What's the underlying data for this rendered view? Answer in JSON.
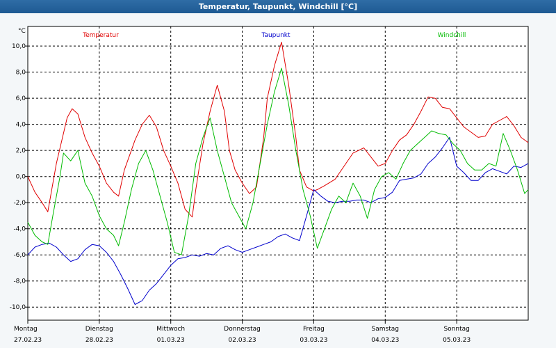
{
  "chart_data": {
    "type": "line",
    "title": "Temperatur, Taupunkt, Windchill [°C]",
    "ylabel": "°C",
    "ylim": [
      -11,
      11.5
    ],
    "yticks": [
      10,
      8,
      6,
      4,
      2,
      0,
      -2,
      -4,
      -6,
      -8,
      -10
    ],
    "ytick_labels": [
      "10,0",
      "8,0",
      "6,0",
      "4,0",
      "2,0",
      "0,0",
      "-2,0",
      "-4,0",
      "-6,0",
      "-8,0",
      "-10,0"
    ],
    "xlim": [
      0,
      7
    ],
    "x_days": [
      {
        "day": "Montag",
        "date": "27.02.23"
      },
      {
        "day": "Dienstag",
        "date": "28.02.23"
      },
      {
        "day": "Mittwoch",
        "date": "01.03.23"
      },
      {
        "day": "Donnerstag",
        "date": "02.03.23"
      },
      {
        "day": "Freitag",
        "date": "03.03.23"
      },
      {
        "day": "Samstag",
        "date": "04.03.23"
      },
      {
        "day": "Sonntag",
        "date": "05.03.23"
      }
    ],
    "grid": true,
    "legend_placement": "top",
    "series": [
      {
        "name": "Temperatur",
        "color": "#e00000",
        "x": [
          0,
          0.1,
          0.2,
          0.28,
          0.4,
          0.55,
          0.62,
          0.7,
          0.8,
          0.9,
          1.0,
          1.1,
          1.2,
          1.27,
          1.35,
          1.5,
          1.6,
          1.7,
          1.8,
          1.9,
          2.0,
          2.1,
          2.2,
          2.3,
          2.35,
          2.45,
          2.55,
          2.65,
          2.75,
          2.82,
          2.9,
          3.0,
          3.1,
          3.2,
          3.3,
          3.35,
          3.45,
          3.55,
          3.65,
          3.75,
          3.8,
          3.9,
          4.0,
          4.05,
          4.15,
          4.3,
          4.45,
          4.55,
          4.7,
          4.8,
          4.9,
          5.0,
          5.1,
          5.2,
          5.3,
          5.4,
          5.5,
          5.6,
          5.7,
          5.8,
          5.9,
          6.0,
          6.1,
          6.2,
          6.3,
          6.4,
          6.5,
          6.6,
          6.7,
          6.8,
          6.9,
          7.0
        ],
        "y": [
          0.0,
          -1.2,
          -2.0,
          -2.7,
          1.0,
          4.5,
          5.2,
          4.8,
          3.0,
          1.8,
          0.8,
          -0.5,
          -1.2,
          -1.5,
          0.5,
          2.8,
          4.0,
          4.7,
          3.8,
          2.0,
          0.8,
          -0.5,
          -2.5,
          -3.1,
          -1.0,
          2.5,
          5.0,
          7.0,
          5.0,
          2.0,
          0.5,
          -0.5,
          -1.3,
          -0.8,
          3.0,
          6.0,
          8.5,
          10.3,
          7.0,
          3.0,
          0.5,
          -0.8,
          -1.1,
          -1.0,
          -0.7,
          -0.2,
          1.0,
          1.8,
          2.2,
          1.5,
          0.8,
          1.0,
          2.0,
          2.8,
          3.2,
          4.0,
          5.0,
          6.1,
          6.0,
          5.3,
          5.2,
          4.5,
          3.8,
          3.4,
          3.0,
          3.1,
          4.0,
          4.3,
          4.6,
          3.9,
          3.0,
          2.6
        ]
      },
      {
        "name": "Taupunkt",
        "color": "#0000cc",
        "x": [
          0,
          0.1,
          0.2,
          0.3,
          0.4,
          0.5,
          0.6,
          0.7,
          0.8,
          0.9,
          1.0,
          1.1,
          1.2,
          1.3,
          1.4,
          1.5,
          1.6,
          1.7,
          1.8,
          1.9,
          2.0,
          2.1,
          2.2,
          2.3,
          2.4,
          2.5,
          2.6,
          2.7,
          2.8,
          2.9,
          3.0,
          3.1,
          3.2,
          3.3,
          3.4,
          3.5,
          3.6,
          3.7,
          3.8,
          3.9,
          4.0,
          4.1,
          4.2,
          4.3,
          4.4,
          4.5,
          4.6,
          4.7,
          4.8,
          4.9,
          5.0,
          5.1,
          5.2,
          5.3,
          5.4,
          5.5,
          5.6,
          5.7,
          5.8,
          5.9,
          6.0,
          6.1,
          6.2,
          6.3,
          6.4,
          6.5,
          6.6,
          6.7,
          6.8,
          6.9,
          7.0
        ],
        "y": [
          -6.0,
          -5.4,
          -5.2,
          -5.1,
          -5.4,
          -6.0,
          -6.5,
          -6.3,
          -5.6,
          -5.2,
          -5.3,
          -5.8,
          -6.5,
          -7.5,
          -8.6,
          -9.8,
          -9.5,
          -8.7,
          -8.2,
          -7.5,
          -6.8,
          -6.3,
          -6.2,
          -6.0,
          -6.1,
          -5.9,
          -6.0,
          -5.5,
          -5.3,
          -5.6,
          -5.8,
          -5.6,
          -5.4,
          -5.2,
          -5.0,
          -4.6,
          -4.4,
          -4.7,
          -4.9,
          -3.0,
          -1.0,
          -1.5,
          -1.9,
          -2.0,
          -1.9,
          -1.9,
          -1.8,
          -1.8,
          -2.0,
          -1.7,
          -1.6,
          -1.2,
          -0.3,
          -0.2,
          -0.1,
          0.2,
          1.0,
          1.5,
          2.2,
          3.0,
          0.8,
          0.3,
          -0.3,
          -0.3,
          0.3,
          0.6,
          0.4,
          0.2,
          0.8,
          0.7,
          1.0
        ]
      },
      {
        "name": "Windchill",
        "color": "#00bb00",
        "x": [
          0,
          0.1,
          0.2,
          0.28,
          0.35,
          0.45,
          0.5,
          0.6,
          0.7,
          0.8,
          0.9,
          1.0,
          1.1,
          1.2,
          1.27,
          1.35,
          1.45,
          1.55,
          1.65,
          1.75,
          1.85,
          1.95,
          2.05,
          2.15,
          2.25,
          2.35,
          2.45,
          2.55,
          2.65,
          2.75,
          2.85,
          2.95,
          3.05,
          3.15,
          3.25,
          3.35,
          3.45,
          3.55,
          3.65,
          3.75,
          3.85,
          3.95,
          4.05,
          4.15,
          4.25,
          4.35,
          4.45,
          4.55,
          4.65,
          4.75,
          4.85,
          4.95,
          5.05,
          5.15,
          5.25,
          5.35,
          5.45,
          5.55,
          5.65,
          5.75,
          5.85,
          5.95,
          6.05,
          6.15,
          6.25,
          6.35,
          6.45,
          6.55,
          6.65,
          6.75,
          6.85,
          6.95,
          7.0
        ],
        "y": [
          -3.5,
          -4.5,
          -5.0,
          -5.2,
          -3.0,
          0.0,
          1.8,
          1.2,
          2.0,
          -0.5,
          -1.5,
          -3.0,
          -4.0,
          -4.5,
          -5.3,
          -3.5,
          -1.0,
          1.0,
          2.0,
          0.5,
          -1.5,
          -3.5,
          -5.8,
          -6.0,
          -3.0,
          1.0,
          3.0,
          4.5,
          2.0,
          0.0,
          -2.0,
          -3.0,
          -4.0,
          -2.0,
          1.0,
          4.0,
          6.5,
          8.3,
          5.5,
          2.0,
          -1.0,
          -3.0,
          -5.5,
          -4.0,
          -2.5,
          -1.5,
          -2.0,
          -0.5,
          -1.5,
          -3.2,
          -1.0,
          0.0,
          0.3,
          -0.2,
          1.0,
          2.0,
          2.5,
          3.0,
          3.5,
          3.3,
          3.2,
          2.5,
          2.0,
          1.0,
          0.5,
          0.5,
          1.0,
          0.8,
          3.3,
          2.0,
          0.5,
          -1.3,
          -1.0
        ]
      }
    ]
  }
}
